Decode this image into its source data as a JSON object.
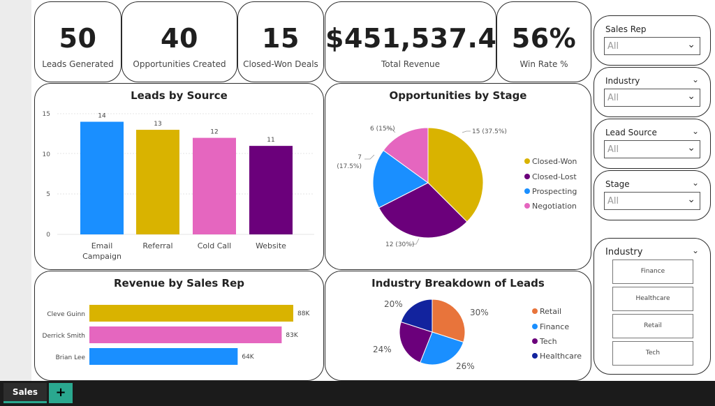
{
  "kpis": [
    {
      "value": "50",
      "label": "Leads Generated"
    },
    {
      "value": "40",
      "label": "Opportunities Created"
    },
    {
      "value": "15",
      "label": "Closed-Won Deals"
    },
    {
      "value": "$451,537.40",
      "label": "Total Revenue"
    },
    {
      "value": "56%",
      "label": "Win Rate %"
    }
  ],
  "leads_chart": {
    "title": "Leads by Source",
    "yticks": [
      "15",
      "10",
      "5",
      "0"
    ],
    "labels": [
      "14",
      "13",
      "12",
      "11"
    ],
    "cat_lines": [
      [
        "Email",
        "Campaign"
      ],
      [
        "Referral"
      ],
      [
        "Cold Call"
      ],
      [
        "Website"
      ]
    ]
  },
  "opp_chart": {
    "title": "Opportunities by Stage",
    "labels": {
      "closed_won": "15 (37.5%)",
      "negotiation": "6 (15%)",
      "prospecting_a": "7",
      "prospecting_b": "(17.5%)",
      "closed_lost": "12 (30%)"
    },
    "legend": [
      "Closed-Won",
      "Closed-Lost",
      "Prospecting",
      "Negotiation"
    ]
  },
  "rev_chart": {
    "title": "Revenue by Sales Rep",
    "reps": [
      "Cleve Guinn",
      "Derrick Smith",
      "Brian Lee"
    ],
    "labels": [
      "88K",
      "83K",
      "64K"
    ]
  },
  "ind_chart": {
    "title": "Industry Breakdown of Leads",
    "labels": {
      "retail": "30%",
      "finance": "26%",
      "tech": "24%",
      "healthcare": "20%"
    },
    "legend": [
      "Retail",
      "Finance",
      "Tech",
      "Healthcare"
    ]
  },
  "slicers": {
    "sales_rep": {
      "title": "Sales Rep",
      "value": "All"
    },
    "industry": {
      "title": "Industry",
      "value": "All"
    },
    "lead_source": {
      "title": "Lead Source",
      "value": "All"
    },
    "stage": {
      "title": "Stage",
      "value": "All"
    },
    "industry_tiles": {
      "title": "Industry",
      "tiles": [
        "Finance",
        "Healthcare",
        "Retail",
        "Tech"
      ]
    }
  },
  "tabs": {
    "sales": "Sales",
    "add": "+"
  },
  "colors": {
    "blue": "#1a8fff",
    "gold": "#d9b300",
    "pink": "#e566bf",
    "purple": "#6b007b",
    "orange": "#e8743b",
    "navy": "#12239e",
    "teal": "#2aa88f"
  },
  "chart_data": [
    {
      "type": "bar",
      "title": "Leads by Source",
      "categories": [
        "Email Campaign",
        "Referral",
        "Cold Call",
        "Website"
      ],
      "values": [
        14,
        13,
        12,
        11
      ],
      "ylim": [
        0,
        15
      ],
      "grid": true
    },
    {
      "type": "pie",
      "title": "Opportunities by Stage",
      "categories": [
        "Closed-Won",
        "Closed-Lost",
        "Prospecting",
        "Negotiation"
      ],
      "values": [
        15,
        12,
        7,
        6
      ],
      "legend": "right"
    },
    {
      "type": "bar",
      "orientation": "horizontal",
      "title": "Revenue by Sales Rep",
      "categories": [
        "Cleve Guinn",
        "Derrick Smith",
        "Brian Lee"
      ],
      "values": [
        88000,
        83000,
        64000
      ]
    },
    {
      "type": "pie",
      "title": "Industry Breakdown of Leads",
      "categories": [
        "Retail",
        "Finance",
        "Tech",
        "Healthcare"
      ],
      "values": [
        30,
        26,
        24,
        20
      ],
      "legend": "right"
    }
  ]
}
